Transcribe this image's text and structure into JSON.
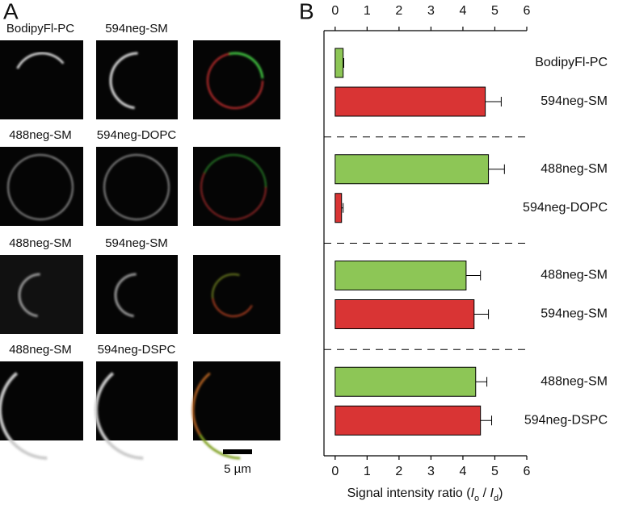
{
  "panel_labels": [
    "A",
    "B"
  ],
  "panel_a": {
    "row_labels": [
      [
        "BodipyFl-PC",
        "594neg-SM"
      ],
      [
        "488neg-SM",
        "594neg-DOPC"
      ],
      [
        "488neg-SM",
        "594neg-SM"
      ],
      [
        "488neg-SM",
        "594neg-DSPC"
      ]
    ],
    "scale_bar": "5 µm"
  },
  "chart_data": {
    "type": "hbar",
    "categories": [
      "BodipyFl-PC",
      "594neg-SM",
      "488neg-SM",
      "594neg-DOPC",
      "488neg-SM",
      "594neg-SM",
      "488neg-SM",
      "594neg-DSPC"
    ],
    "values": [
      0.25,
      4.7,
      4.8,
      0.2,
      4.1,
      4.35,
      4.4,
      4.55
    ],
    "errors": [
      0.02,
      0.5,
      0.5,
      0.05,
      0.45,
      0.45,
      0.35,
      0.35
    ],
    "colors": [
      "#8dc656",
      "#d93434",
      "#8dc656",
      "#d93434",
      "#8dc656",
      "#d93434",
      "#8dc656",
      "#d93434"
    ],
    "xlim": [
      -0.35,
      6
    ],
    "xticks": [
      0,
      1,
      2,
      3,
      4,
      5,
      6
    ],
    "xlabel_parts": [
      "Signal intensity ratio (",
      "I",
      "o",
      " / ",
      "I",
      "d",
      ")"
    ]
  }
}
